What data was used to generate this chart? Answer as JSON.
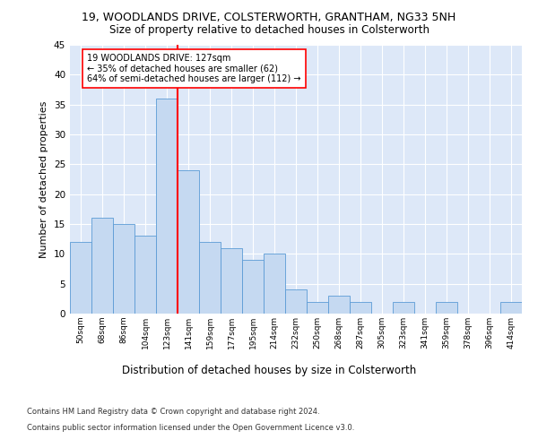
{
  "title1": "19, WOODLANDS DRIVE, COLSTERWORTH, GRANTHAM, NG33 5NH",
  "title2": "Size of property relative to detached houses in Colsterworth",
  "xlabel": "Distribution of detached houses by size in Colsterworth",
  "ylabel": "Number of detached properties",
  "footnote1": "Contains HM Land Registry data © Crown copyright and database right 2024.",
  "footnote2": "Contains public sector information licensed under the Open Government Licence v3.0.",
  "categories": [
    "50sqm",
    "68sqm",
    "86sqm",
    "104sqm",
    "123sqm",
    "141sqm",
    "159sqm",
    "177sqm",
    "195sqm",
    "214sqm",
    "232sqm",
    "250sqm",
    "268sqm",
    "287sqm",
    "305sqm",
    "323sqm",
    "341sqm",
    "359sqm",
    "378sqm",
    "396sqm",
    "414sqm"
  ],
  "values": [
    12,
    16,
    15,
    13,
    36,
    24,
    12,
    11,
    9,
    10,
    4,
    2,
    3,
    2,
    0,
    2,
    0,
    2,
    0,
    0,
    2
  ],
  "bar_color": "#c5d9f1",
  "bar_edge_color": "#5b9bd5",
  "property_line_index": 4,
  "property_line_color": "red",
  "annotation_text": "19 WOODLANDS DRIVE: 127sqm\n← 35% of detached houses are smaller (62)\n64% of semi-detached houses are larger (112) →",
  "annotation_box_color": "white",
  "annotation_box_edge": "red",
  "ylim": [
    0,
    45
  ],
  "yticks": [
    0,
    5,
    10,
    15,
    20,
    25,
    30,
    35,
    40,
    45
  ],
  "background_color": "#dde8f8",
  "grid_color": "white",
  "title1_fontsize": 9,
  "title2_fontsize": 8.5,
  "xlabel_fontsize": 8.5,
  "ylabel_fontsize": 8
}
